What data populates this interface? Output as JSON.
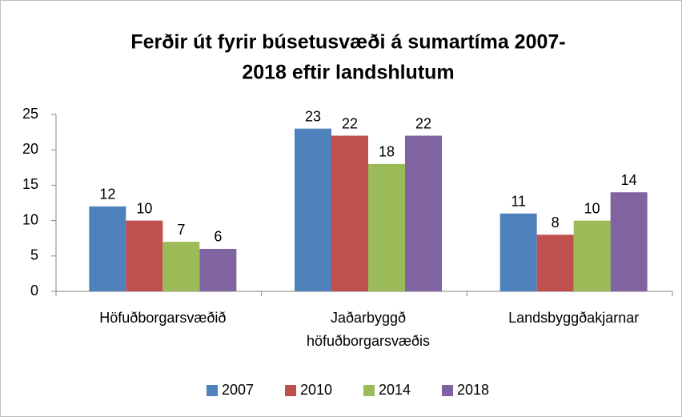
{
  "chart_data": {
    "type": "bar",
    "title": [
      "Ferðir út fyrir búsetusvæði á sumartíma 2007-",
      "2018 eftir landshlutum"
    ],
    "categories": [
      "Höfuðborgarsvæðið",
      "Jaðarbyggð höfuðborgarsvæðis",
      "Landsbyggðakjarnar"
    ],
    "series": [
      {
        "name": "2007",
        "color": "#4f81bd",
        "values": [
          12,
          23,
          11
        ]
      },
      {
        "name": "2010",
        "color": "#c0504d",
        "values": [
          10,
          22,
          8
        ]
      },
      {
        "name": "2014",
        "color": "#9bbb59",
        "values": [
          7,
          18,
          10
        ]
      },
      {
        "name": "2018",
        "color": "#8064a2",
        "values": [
          6,
          22,
          14
        ]
      }
    ],
    "ylim": [
      0,
      25
    ],
    "yticks": [
      0,
      5,
      10,
      15,
      20,
      25
    ],
    "grid": false,
    "legend": "bottom"
  }
}
